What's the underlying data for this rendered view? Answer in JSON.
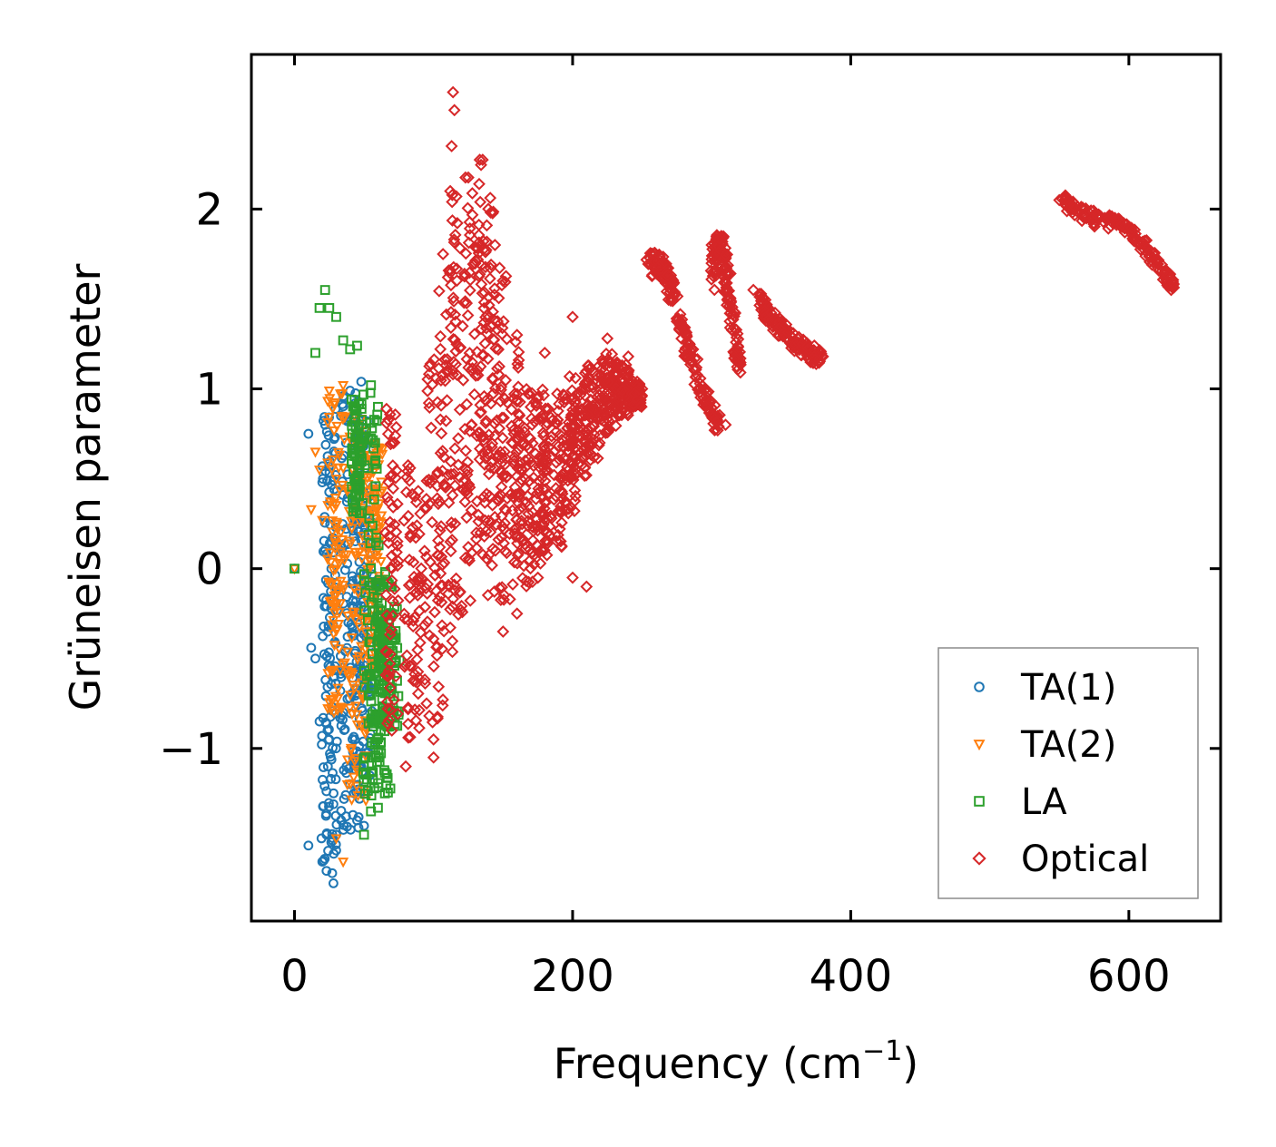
{
  "chart_data": {
    "type": "scatter",
    "xlabel": "Frequency (cm",
    "xlabel_sup": "−1",
    "xlabel_close": ")",
    "ylabel": "Grüneisen parameter",
    "xlim": [
      -31,
      666
    ],
    "ylim": [
      -1.96,
      2.86
    ],
    "xticks": [
      0,
      200,
      400,
      600
    ],
    "xtick_labels": [
      "0",
      "200",
      "400",
      "600"
    ],
    "yticks": [
      -1,
      0,
      1,
      2
    ],
    "ytick_labels": [
      "−1",
      "0",
      "1",
      "2"
    ],
    "legend_position": "lower-right",
    "series": [
      {
        "name": "TA(1)",
        "marker": "circle",
        "color": "#1f77b4",
        "n": 380,
        "anchors": [
          [
            0,
            0
          ],
          [
            10,
            0.75
          ],
          [
            12,
            -0.44
          ],
          [
            15,
            -0.5
          ],
          [
            18,
            -0.85
          ],
          [
            20,
            0.48
          ],
          [
            22,
            0.8
          ],
          [
            24,
            -1.1
          ],
          [
            25,
            -0.95
          ],
          [
            28,
            -1.31
          ],
          [
            30,
            -1.48
          ],
          [
            28,
            -1.75
          ],
          [
            20,
            -1.63
          ],
          [
            10,
            -1.54
          ],
          [
            35,
            -0.8
          ],
          [
            38,
            0.82
          ],
          [
            40,
            0.99
          ],
          [
            42,
            -1.37
          ],
          [
            45,
            -1.4
          ],
          [
            50,
            -1.43
          ],
          [
            48,
            1.04
          ],
          [
            52,
            0.82
          ],
          [
            45,
            -0.3
          ],
          [
            50,
            0.2
          ]
        ],
        "bands": [
          [
            25,
            0.9,
            -1.7,
            0.7
          ],
          [
            40,
            1.0,
            -1.5,
            0.9
          ],
          [
            50,
            0.8,
            -1.3,
            1.0
          ]
        ]
      },
      {
        "name": "TA(2)",
        "marker": "triangle-down",
        "color": "#ff7f0e",
        "n": 300,
        "anchors": [
          [
            0,
            0
          ],
          [
            12,
            0.33
          ],
          [
            15,
            0.65
          ],
          [
            18,
            0.55
          ],
          [
            20,
            0.27
          ],
          [
            25,
            0.99
          ],
          [
            30,
            0.5
          ],
          [
            35,
            1.02
          ],
          [
            35,
            -1.63
          ],
          [
            30,
            -1.5
          ],
          [
            38,
            -1.2
          ],
          [
            45,
            0.7
          ],
          [
            50,
            0.3
          ],
          [
            55,
            0.6
          ],
          [
            55,
            -0.5
          ],
          [
            60,
            0.1
          ]
        ],
        "bands": [
          [
            30,
            1.0,
            -0.8,
            0.8
          ],
          [
            45,
            0.9,
            -1.3,
            0.9
          ],
          [
            58,
            0.7,
            -0.6,
            0.8
          ]
        ]
      },
      {
        "name": "LA",
        "marker": "square",
        "color": "#2ca02c",
        "n": 320,
        "anchors": [
          [
            0,
            0
          ],
          [
            15,
            1.2
          ],
          [
            18,
            1.45
          ],
          [
            22,
            1.55
          ],
          [
            25,
            1.45
          ],
          [
            30,
            1.4
          ],
          [
            35,
            1.27
          ],
          [
            40,
            1.22
          ],
          [
            45,
            1.24
          ],
          [
            55,
            1.02
          ],
          [
            55,
            -1.35
          ],
          [
            60,
            -1.33
          ],
          [
            65,
            -1.25
          ],
          [
            65,
            -0.5
          ],
          [
            68,
            -0.3
          ],
          [
            70,
            -0.1
          ],
          [
            50,
            -1.48
          ],
          [
            60,
            0.9
          ],
          [
            58,
            0.7
          ]
        ],
        "bands": [
          [
            55,
            1.0,
            -1.3,
            0.7
          ],
          [
            62,
            0.0,
            -1.3,
            0.9
          ],
          [
            68,
            -0.2,
            -0.9,
            1.0
          ],
          [
            45,
            0.95,
            0.3,
            0.5
          ]
        ]
      },
      {
        "name": "Optical",
        "marker": "diamond",
        "color": "#d62728",
        "n": 1200,
        "anchors": [
          [
            114,
            2.65
          ],
          [
            115,
            2.55
          ],
          [
            113,
            2.35
          ],
          [
            112,
            2.1
          ],
          [
            100,
            -1.05
          ],
          [
            100,
            -0.95
          ],
          [
            95,
            -0.75
          ],
          [
            80,
            -1.1
          ],
          [
            70,
            -0.9
          ],
          [
            150,
            -0.35
          ],
          [
            160,
            -0.25
          ],
          [
            175,
            -0.05
          ],
          [
            200,
            -0.05
          ],
          [
            210,
            -0.1
          ],
          [
            225,
            1.28
          ],
          [
            240,
            1.18
          ],
          [
            250,
            1.0
          ],
          [
            200,
            1.4
          ],
          [
            180,
            1.2
          ],
          [
            160,
            1.3
          ],
          [
            300,
            1.8
          ],
          [
            310,
            0.8
          ],
          [
            330,
            1.55
          ],
          [
            380,
            1.18
          ],
          [
            550,
            2.05
          ],
          [
            590,
            1.95
          ],
          [
            620,
            1.7
          ],
          [
            632,
            1.58
          ]
        ],
        "bands": [
          [
            70,
            0.9,
            -0.9,
            0.6
          ],
          [
            85,
            0.6,
            -1.0,
            0.8
          ],
          [
            100,
            1.3,
            -0.9,
            0.9
          ],
          [
            110,
            1.8,
            -0.6,
            1.0
          ],
          [
            120,
            2.1,
            -0.3,
            1.0
          ],
          [
            130,
            2.3,
            0.0,
            1.0
          ],
          [
            138,
            2.3,
            0.0,
            1.0
          ],
          [
            145,
            1.7,
            -0.2,
            0.9
          ],
          [
            155,
            1.3,
            -0.2,
            0.9
          ],
          [
            165,
            1.0,
            -0.1,
            0.9
          ],
          [
            175,
            1.0,
            0.0,
            0.9
          ],
          [
            185,
            0.9,
            0.1,
            0.9
          ],
          [
            195,
            1.0,
            0.3,
            0.9
          ],
          [
            205,
            1.1,
            0.5,
            0.9
          ],
          [
            215,
            1.15,
            0.6,
            0.8
          ],
          [
            225,
            1.2,
            0.75,
            0.8
          ],
          [
            235,
            1.15,
            0.85,
            0.7
          ],
          [
            245,
            1.05,
            0.9,
            0.6
          ]
        ],
        "curves": [
          {
            "x": [
              255,
              262,
              268,
              275,
              282,
              290,
              298,
              305
            ],
            "y": [
              1.68,
              1.7,
              1.62,
              1.45,
              1.25,
              1.05,
              0.9,
              0.8
            ],
            "w": 0.07
          },
          {
            "x": [
              300,
              304,
              308,
              312,
              316,
              320
            ],
            "y": [
              1.6,
              1.82,
              1.78,
              1.55,
              1.3,
              1.1
            ],
            "w": 0.07
          },
          {
            "x": [
              335,
              340,
              350,
              360,
              370,
              378
            ],
            "y": [
              1.5,
              1.42,
              1.33,
              1.25,
              1.2,
              1.18
            ],
            "w": 0.05
          },
          {
            "x": [
              552,
              565,
              580,
              595,
              610,
              625,
              632
            ],
            "y": [
              2.05,
              1.98,
              1.93,
              1.92,
              1.8,
              1.65,
              1.58
            ],
            "w": 0.04
          }
        ]
      }
    ]
  }
}
